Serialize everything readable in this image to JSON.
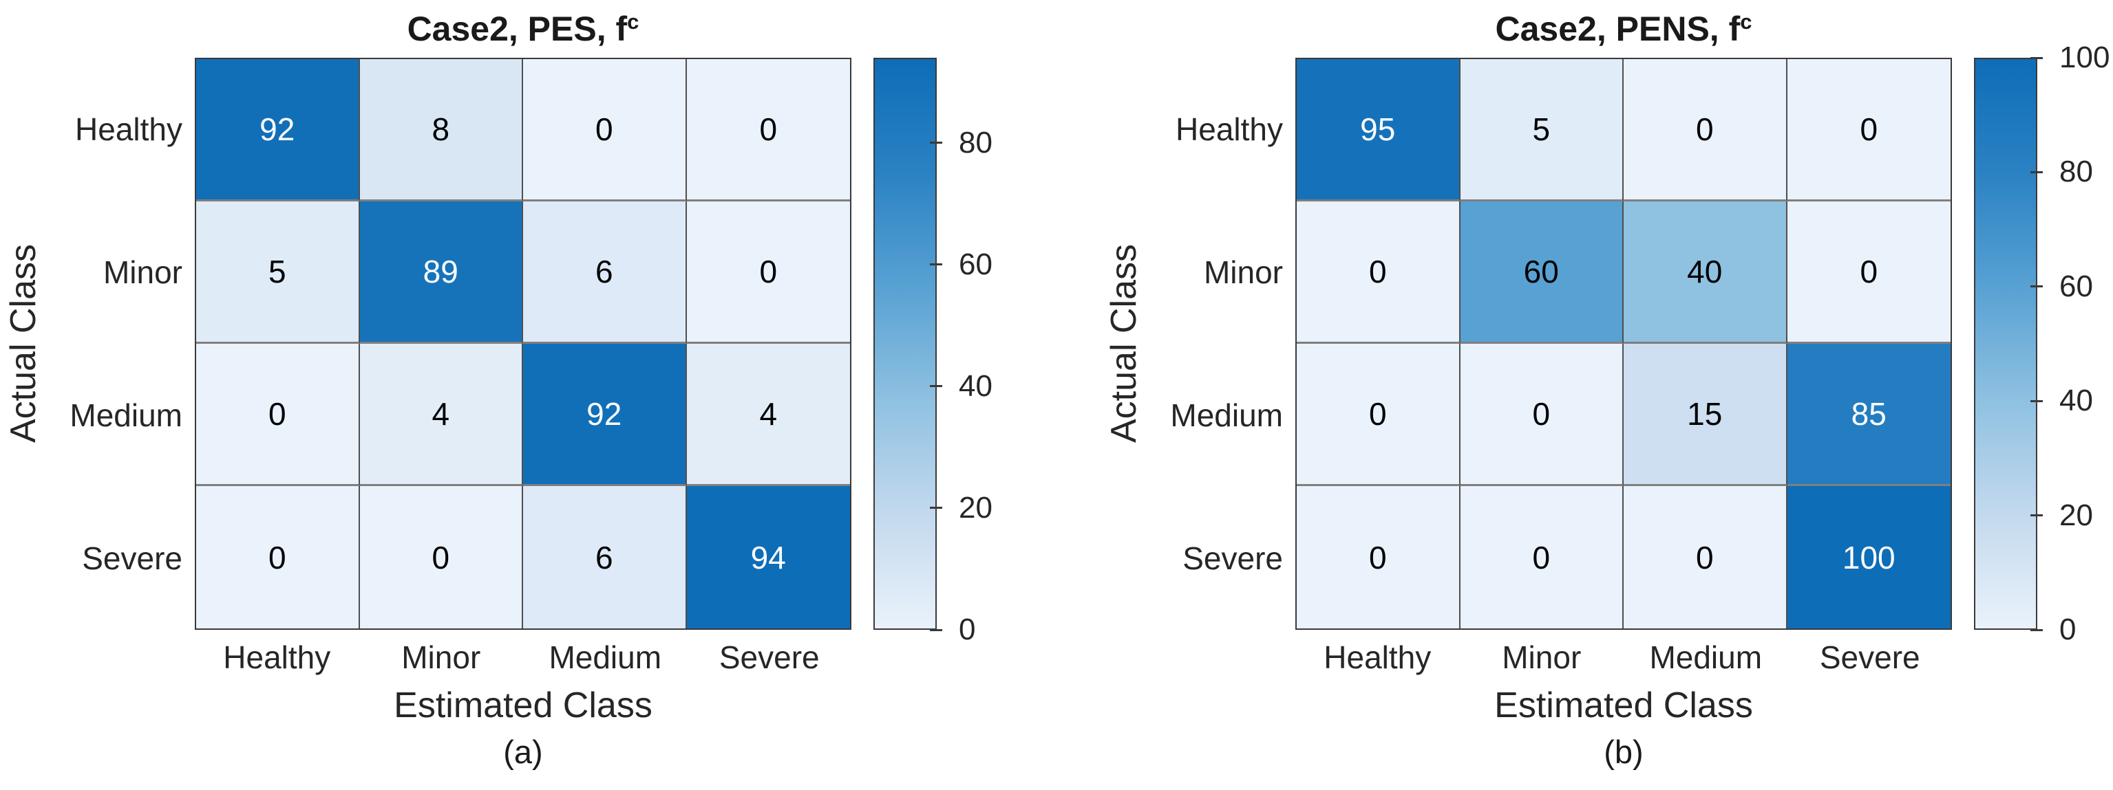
{
  "palette": {
    "background": "#ffffff",
    "gradient_stops": [
      "#eaf2fb",
      "#c3d9ee",
      "#8fc1e1",
      "#58a1d3",
      "#2b82c3",
      "#0e6db7"
    ],
    "frame_color": "#3a3a3a",
    "column_line_color": "#4f4f4f",
    "row_line_color": "#7f7f7f",
    "text_color": "#262626",
    "title_color": "#1a1a1a",
    "cell_text_light": "#ffffff",
    "cell_text_dark": "#000000",
    "light_text_threshold": 0.72
  },
  "chart_data": [
    {
      "type": "heatmap",
      "title": "Case2, PES, f",
      "title_superscript": "c",
      "xlabel": "Estimated Class",
      "ylabel": "Actual Class",
      "x_categories": [
        "Healthy",
        "Minor",
        "Medium",
        "Severe"
      ],
      "y_categories": [
        "Healthy",
        "Minor",
        "Medium",
        "Severe"
      ],
      "values": [
        [
          92,
          8,
          0,
          0
        ],
        [
          5,
          89,
          6,
          0
        ],
        [
          0,
          4,
          92,
          4
        ],
        [
          0,
          0,
          6,
          94
        ]
      ],
      "color_limits": [
        0,
        94
      ],
      "colorbar_ticks": [
        0,
        20,
        40,
        60,
        80
      ],
      "colorbar_position": "right",
      "grid": true,
      "caption": "(a)"
    },
    {
      "type": "heatmap",
      "title": "Case2, PENS, f",
      "title_superscript": "c",
      "xlabel": "Estimated Class",
      "ylabel": "Actual Class",
      "x_categories": [
        "Healthy",
        "Minor",
        "Medium",
        "Severe"
      ],
      "y_categories": [
        "Healthy",
        "Minor",
        "Medium",
        "Severe"
      ],
      "values": [
        [
          95,
          5,
          0,
          0
        ],
        [
          0,
          60,
          40,
          0
        ],
        [
          0,
          0,
          15,
          85
        ],
        [
          0,
          0,
          0,
          100
        ]
      ],
      "color_limits": [
        0,
        100
      ],
      "colorbar_ticks": [
        0,
        20,
        40,
        60,
        80,
        100
      ],
      "colorbar_position": "right",
      "grid": true,
      "caption": "(b)"
    }
  ]
}
